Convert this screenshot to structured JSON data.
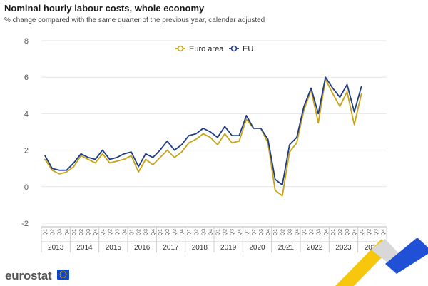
{
  "header": {
    "title": "Nominal hourly labour costs, whole economy",
    "subtitle": "% change compared with the same quarter of the previous year, calendar adjusted"
  },
  "branding": {
    "logo_text": "eurostat",
    "flag_icon": "eu-flag-icon"
  },
  "colors": {
    "euro_area": "#c8a413",
    "eu": "#1f3c88",
    "grid": "#e6e6e6",
    "axis_text": "#555555",
    "corner_yellow": "#f5c400",
    "corner_blue": "#1f50d6"
  },
  "chart_data": {
    "type": "line",
    "title": "Nominal hourly labour costs, whole economy",
    "subtitle": "% change compared with the same quarter of the previous year, calendar adjusted",
    "xlabel": "",
    "ylabel": "",
    "ylim": [
      -2,
      8
    ],
    "yticks": [
      8,
      6,
      4,
      2,
      0,
      -2
    ],
    "grid": "horizontal",
    "legend_position": "top-center",
    "quarter_labels": [
      "Q1",
      "Q2",
      "Q3",
      "Q4"
    ],
    "years": [
      "2013",
      "2014",
      "2015",
      "2016",
      "2017",
      "2018",
      "2019",
      "2020",
      "2021",
      "2022",
      "2023",
      "2024"
    ],
    "x": [
      "2013Q1",
      "2013Q2",
      "2013Q3",
      "2013Q4",
      "2014Q1",
      "2014Q2",
      "2014Q3",
      "2014Q4",
      "2015Q1",
      "2015Q2",
      "2015Q3",
      "2015Q4",
      "2016Q1",
      "2016Q2",
      "2016Q3",
      "2016Q4",
      "2017Q1",
      "2017Q2",
      "2017Q3",
      "2017Q4",
      "2018Q1",
      "2018Q2",
      "2018Q3",
      "2018Q4",
      "2019Q1",
      "2019Q2",
      "2019Q3",
      "2019Q4",
      "2020Q1",
      "2020Q2",
      "2020Q3",
      "2020Q4",
      "2021Q1",
      "2021Q2",
      "2021Q3",
      "2021Q4",
      "2022Q1",
      "2022Q2",
      "2022Q3",
      "2022Q4",
      "2023Q1",
      "2023Q2",
      "2023Q3",
      "2023Q4",
      "2024Q1",
      "2024Q2",
      "2024Q3",
      "2024Q4"
    ],
    "series": [
      {
        "name": "Euro area",
        "values": [
          1.5,
          0.9,
          0.7,
          0.8,
          1.1,
          1.7,
          1.5,
          1.3,
          1.8,
          1.3,
          1.4,
          1.5,
          1.7,
          0.8,
          1.5,
          1.2,
          1.6,
          2.0,
          1.6,
          1.9,
          2.4,
          2.6,
          2.9,
          2.7,
          2.3,
          2.9,
          2.4,
          2.5,
          3.7,
          3.2,
          3.2,
          2.4,
          -0.2,
          -0.5,
          1.9,
          2.4,
          4.2,
          5.3,
          3.5,
          5.9,
          5.1,
          4.4,
          5.2,
          3.4,
          5.1,
          null,
          null,
          null
        ]
      },
      {
        "name": "EU",
        "values": [
          1.7,
          1.0,
          0.9,
          0.9,
          1.3,
          1.8,
          1.6,
          1.5,
          2.0,
          1.5,
          1.6,
          1.8,
          1.9,
          1.1,
          1.8,
          1.6,
          2.0,
          2.5,
          2.0,
          2.3,
          2.8,
          2.9,
          3.2,
          3.0,
          2.7,
          3.3,
          2.8,
          2.8,
          3.9,
          3.2,
          3.2,
          2.6,
          0.4,
          0.1,
          2.3,
          2.7,
          4.4,
          5.4,
          4.0,
          6.0,
          5.4,
          4.9,
          5.6,
          4.1,
          5.5,
          null,
          null,
          null
        ]
      }
    ]
  }
}
